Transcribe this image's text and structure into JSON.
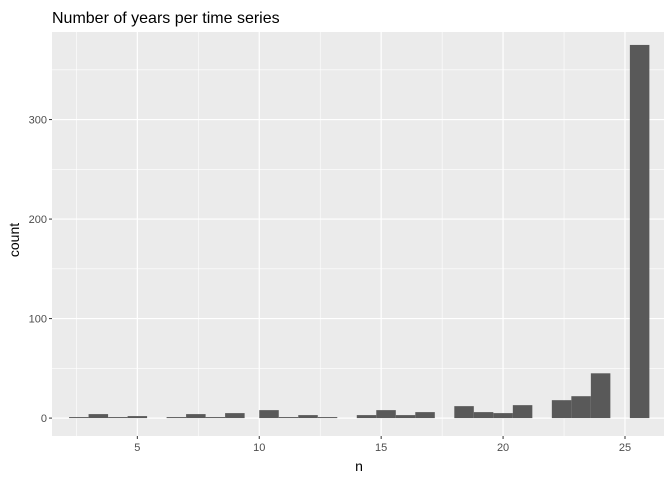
{
  "chart_data": {
    "type": "bar",
    "title": "Number of years per time series",
    "xlabel": "n",
    "ylabel": "count",
    "x_ticks": [
      5,
      10,
      15,
      20,
      25
    ],
    "y_ticks": [
      0,
      100,
      200,
      300
    ],
    "xlim": [
      1.5,
      26.6
    ],
    "ylim": [
      -18,
      388
    ],
    "bin_width": 0.8,
    "grid": true,
    "panel_background": "#ebebeb",
    "bar_color": "#595959",
    "bins": [
      {
        "x": 2.6,
        "count": 1
      },
      {
        "x": 3.4,
        "count": 4
      },
      {
        "x": 4.2,
        "count": 1
      },
      {
        "x": 5.0,
        "count": 2
      },
      {
        "x": 6.6,
        "count": 1
      },
      {
        "x": 7.4,
        "count": 4
      },
      {
        "x": 8.2,
        "count": 1
      },
      {
        "x": 9.0,
        "count": 5
      },
      {
        "x": 10.4,
        "count": 8
      },
      {
        "x": 11.2,
        "count": 1
      },
      {
        "x": 12.0,
        "count": 3
      },
      {
        "x": 12.8,
        "count": 1
      },
      {
        "x": 14.4,
        "count": 3
      },
      {
        "x": 15.2,
        "count": 8
      },
      {
        "x": 16.0,
        "count": 3
      },
      {
        "x": 16.8,
        "count": 6
      },
      {
        "x": 18.4,
        "count": 12
      },
      {
        "x": 19.2,
        "count": 6
      },
      {
        "x": 20.0,
        "count": 5
      },
      {
        "x": 20.8,
        "count": 13
      },
      {
        "x": 22.4,
        "count": 18
      },
      {
        "x": 23.2,
        "count": 22
      },
      {
        "x": 24.0,
        "count": 45
      },
      {
        "x": 25.6,
        "count": 375
      }
    ]
  }
}
